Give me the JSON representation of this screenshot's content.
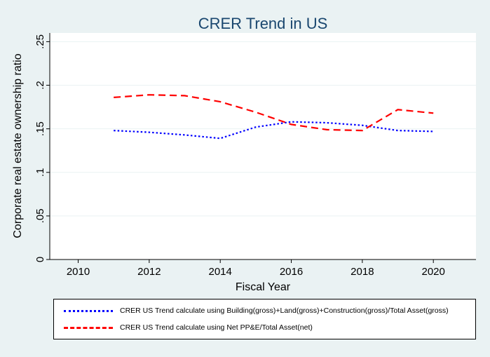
{
  "chart_data": {
    "type": "line",
    "title": "CRER Trend in US",
    "xlabel": "Fiscal Year",
    "ylabel": "Corporate real estate ownership ratio",
    "xlim": [
      2009.2,
      2021.2
    ],
    "ylim": [
      0,
      0.26
    ],
    "x_ticks": [
      2010,
      2012,
      2014,
      2016,
      2018,
      2020
    ],
    "y_ticks": [
      0,
      0.05,
      0.1,
      0.15,
      0.2,
      0.25
    ],
    "x_tick_labels": [
      "2010",
      "2012",
      "2014",
      "2016",
      "2018",
      "2020"
    ],
    "y_tick_labels": [
      "0",
      ".05",
      ".1",
      ".15",
      ".2",
      ".25"
    ],
    "x": [
      2011,
      2012,
      2013,
      2014,
      2015,
      2016,
      2017,
      2018,
      2019,
      2020
    ],
    "series": [
      {
        "name": "CRER US Trend calculate using Building(gross)+Land(gross)+Construction(gross)/Total Asset(gross)",
        "color": "#0000ff",
        "style": "dotted",
        "values": [
          0.148,
          0.146,
          0.143,
          0.139,
          0.152,
          0.158,
          0.157,
          0.154,
          0.148,
          0.147
        ]
      },
      {
        "name": "CRER US Trend calculate using Net PP&E/Total Asset(net)",
        "color": "#ff0000",
        "style": "dashed",
        "values": [
          0.186,
          0.189,
          0.188,
          0.181,
          0.169,
          0.155,
          0.149,
          0.148,
          0.172,
          0.168
        ]
      }
    ],
    "legend_position": "bottom"
  }
}
